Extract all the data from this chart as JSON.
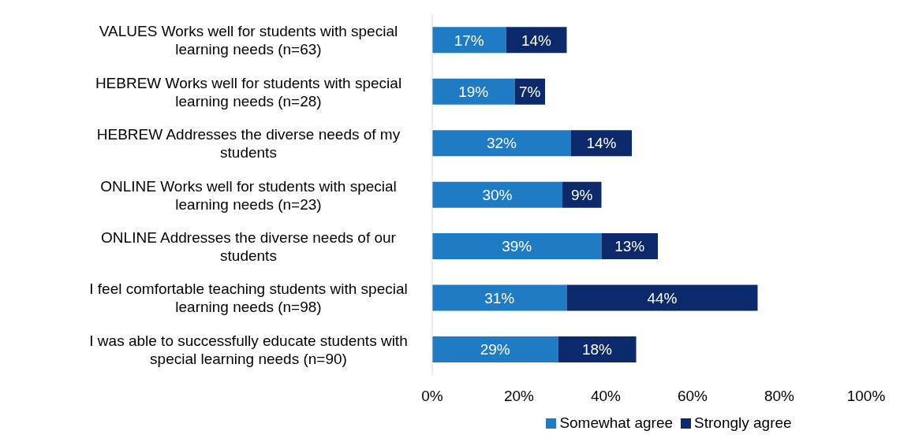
{
  "chart_data": {
    "type": "bar",
    "orientation": "horizontal",
    "stacked": true,
    "categories": [
      "VALUES Works well for students with special learning needs (n=63)",
      "HEBREW Works well for students with special learning needs (n=28)",
      "HEBREW Addresses the diverse needs of my students",
      "ONLINE Works well for students with special learning needs (n=23)",
      "ONLINE Addresses the diverse needs of our students",
      "I feel comfortable teaching students with special learning needs (n=98)",
      "I  was able to successfully educate students with special learning needs (n=90)"
    ],
    "series": [
      {
        "name": "Somewhat agree",
        "color": "#1f7bc4",
        "values": [
          17,
          19,
          32,
          30,
          39,
          31,
          29
        ],
        "value_labels": [
          "17%",
          "19%",
          "32%",
          "30%",
          "39%",
          "31%",
          "29%"
        ]
      },
      {
        "name": "Strongly agree",
        "color": "#0c2a6b",
        "values": [
          14,
          7,
          14,
          9,
          13,
          44,
          18
        ],
        "value_labels": [
          "14%",
          "7%",
          "14%",
          "9%",
          "13%",
          "44%",
          "18%"
        ]
      }
    ],
    "xlim": [
      0,
      100
    ],
    "xticks": [
      {
        "value": 0,
        "label": "0%"
      },
      {
        "value": 20,
        "label": "20%"
      },
      {
        "value": 40,
        "label": "40%"
      },
      {
        "value": 60,
        "label": "60%"
      },
      {
        "value": 80,
        "label": "80%"
      },
      {
        "value": 100,
        "label": "100%"
      }
    ],
    "grid": false,
    "legend": "bottom"
  }
}
